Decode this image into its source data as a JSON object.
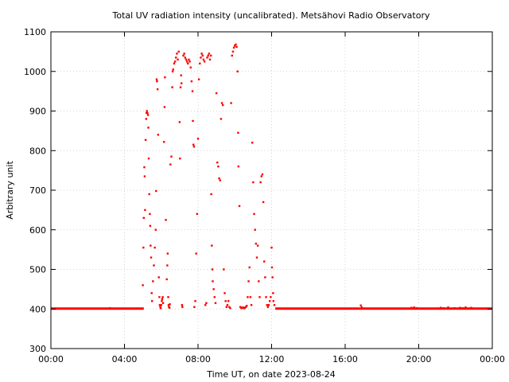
{
  "chart_data": {
    "type": "scatter",
    "title": "Total UV radiation intensity (uncalibrated). Metsähovi Radio Observatory",
    "xlabel": "Time UT, on date 2023-08-24",
    "ylabel": "Arbitrary unit",
    "xlim": [
      0,
      24
    ],
    "ylim": [
      300,
      1100
    ],
    "x_ticks": [
      {
        "value": 0,
        "label": "00:00"
      },
      {
        "value": 4,
        "label": "04:00"
      },
      {
        "value": 8,
        "label": "08:00"
      },
      {
        "value": 12,
        "label": "12:00"
      },
      {
        "value": 16,
        "label": "16:00"
      },
      {
        "value": 20,
        "label": "20:00"
      },
      {
        "value": 24,
        "label": "00:00"
      }
    ],
    "y_ticks": [
      {
        "value": 300,
        "label": "300"
      },
      {
        "value": 400,
        "label": "400"
      },
      {
        "value": 500,
        "label": "500"
      },
      {
        "value": 600,
        "label": "600"
      },
      {
        "value": 700,
        "label": "700"
      },
      {
        "value": 800,
        "label": "800"
      },
      {
        "value": 900,
        "label": "900"
      },
      {
        "value": 1000,
        "label": "1000"
      },
      {
        "value": 1100,
        "label": "1100"
      }
    ],
    "grid": true,
    "series": [
      {
        "color": "#ff0000",
        "baseline": [
          {
            "x": [
              0.0,
              5.05
            ],
            "y": 401
          },
          {
            "x": [
              12.2,
              24.0
            ],
            "y": 401
          }
        ],
        "points": [
          [
            3.2,
            402
          ],
          [
            16.85,
            409
          ],
          [
            16.9,
            404
          ],
          [
            19.6,
            403
          ],
          [
            19.75,
            404
          ],
          [
            19.9,
            402
          ],
          [
            21.2,
            403
          ],
          [
            21.35,
            402
          ],
          [
            21.6,
            404
          ],
          [
            21.95,
            402
          ],
          [
            22.1,
            401
          ],
          [
            22.25,
            403
          ],
          [
            22.4,
            402
          ],
          [
            22.55,
            404
          ],
          [
            22.7,
            401
          ],
          [
            22.85,
            403
          ],
          [
            5.0,
            460
          ],
          [
            5.03,
            555
          ],
          [
            5.05,
            630
          ],
          [
            5.08,
            758
          ],
          [
            5.1,
            735
          ],
          [
            5.12,
            650
          ],
          [
            5.15,
            827
          ],
          [
            5.18,
            880
          ],
          [
            5.2,
            895
          ],
          [
            5.22,
            900
          ],
          [
            5.25,
            895
          ],
          [
            5.28,
            890
          ],
          [
            5.3,
            858
          ],
          [
            5.32,
            780
          ],
          [
            5.35,
            690
          ],
          [
            5.38,
            640
          ],
          [
            5.4,
            610
          ],
          [
            5.42,
            560
          ],
          [
            5.45,
            530
          ],
          [
            5.48,
            440
          ],
          [
            5.5,
            420
          ],
          [
            5.55,
            470
          ],
          [
            5.6,
            510
          ],
          [
            5.65,
            555
          ],
          [
            5.7,
            600
          ],
          [
            5.72,
            698
          ],
          [
            5.75,
            980
          ],
          [
            5.77,
            975
          ],
          [
            5.8,
            955
          ],
          [
            5.83,
            840
          ],
          [
            5.87,
            480
          ],
          [
            5.9,
            430
          ],
          [
            5.92,
            410
          ],
          [
            5.95,
            405
          ],
          [
            5.97,
            402
          ],
          [
            6.0,
            410
          ],
          [
            6.03,
            420
          ],
          [
            6.05,
            425
          ],
          [
            6.08,
            430
          ],
          [
            6.1,
            415
          ],
          [
            6.15,
            822
          ],
          [
            6.18,
            910
          ],
          [
            6.2,
            985
          ],
          [
            6.25,
            625
          ],
          [
            6.3,
            475
          ],
          [
            6.33,
            510
          ],
          [
            6.35,
            540
          ],
          [
            6.38,
            430
          ],
          [
            6.4,
            410
          ],
          [
            6.42,
            405
          ],
          [
            6.45,
            403
          ],
          [
            6.47,
            412
          ],
          [
            6.5,
            765
          ],
          [
            6.55,
            785
          ],
          [
            6.6,
            960
          ],
          [
            6.62,
            1000
          ],
          [
            6.65,
            1005
          ],
          [
            6.7,
            1020
          ],
          [
            6.75,
            1025
          ],
          [
            6.8,
            1035
          ],
          [
            6.85,
            1045
          ],
          [
            6.9,
            1030
          ],
          [
            6.95,
            1050
          ],
          [
            7.0,
            872
          ],
          [
            7.02,
            780
          ],
          [
            7.05,
            960
          ],
          [
            7.08,
            990
          ],
          [
            7.1,
            970
          ],
          [
            7.13,
            410
          ],
          [
            7.15,
            405
          ],
          [
            7.2,
            1040
          ],
          [
            7.25,
            1045
          ],
          [
            7.3,
            1035
          ],
          [
            7.35,
            1030
          ],
          [
            7.4,
            1025
          ],
          [
            7.45,
            1020
          ],
          [
            7.5,
            1030
          ],
          [
            7.55,
            1025
          ],
          [
            7.6,
            1010
          ],
          [
            7.65,
            975
          ],
          [
            7.7,
            950
          ],
          [
            7.72,
            875
          ],
          [
            7.75,
            815
          ],
          [
            7.78,
            810
          ],
          [
            7.8,
            405
          ],
          [
            7.85,
            420
          ],
          [
            7.9,
            540
          ],
          [
            7.95,
            640
          ],
          [
            8.0,
            830
          ],
          [
            8.05,
            980
          ],
          [
            8.1,
            1020
          ],
          [
            8.15,
            1035
          ],
          [
            8.2,
            1045
          ],
          [
            8.25,
            1040
          ],
          [
            8.3,
            1030
          ],
          [
            8.35,
            1025
          ],
          [
            8.4,
            410
          ],
          [
            8.45,
            415
          ],
          [
            8.5,
            1035
          ],
          [
            8.55,
            1040
          ],
          [
            8.6,
            1045
          ],
          [
            8.65,
            1030
          ],
          [
            8.7,
            1040
          ],
          [
            8.72,
            690
          ],
          [
            8.75,
            560
          ],
          [
            8.78,
            500
          ],
          [
            8.8,
            470
          ],
          [
            8.85,
            450
          ],
          [
            8.9,
            430
          ],
          [
            8.95,
            415
          ],
          [
            9.0,
            945
          ],
          [
            9.05,
            770
          ],
          [
            9.1,
            760
          ],
          [
            9.15,
            730
          ],
          [
            9.2,
            725
          ],
          [
            9.25,
            880
          ],
          [
            9.3,
            920
          ],
          [
            9.35,
            915
          ],
          [
            9.4,
            500
          ],
          [
            9.45,
            440
          ],
          [
            9.5,
            420
          ],
          [
            9.55,
            405
          ],
          [
            9.6,
            410
          ],
          [
            9.65,
            420
          ],
          [
            9.7,
            405
          ],
          [
            9.75,
            402
          ],
          [
            9.8,
            920
          ],
          [
            9.85,
            1040
          ],
          [
            9.9,
            1050
          ],
          [
            9.95,
            1060
          ],
          [
            10.0,
            1065
          ],
          [
            10.05,
            1068
          ],
          [
            10.1,
            1062
          ],
          [
            10.15,
            1000
          ],
          [
            10.18,
            845
          ],
          [
            10.2,
            760
          ],
          [
            10.25,
            660
          ],
          [
            10.3,
            405
          ],
          [
            10.35,
            402
          ],
          [
            10.4,
            403
          ],
          [
            10.45,
            404
          ],
          [
            10.5,
            402
          ],
          [
            10.55,
            403
          ],
          [
            10.6,
            405
          ],
          [
            10.65,
            408
          ],
          [
            10.7,
            430
          ],
          [
            10.75,
            470
          ],
          [
            10.8,
            505
          ],
          [
            10.85,
            430
          ],
          [
            10.9,
            410
          ],
          [
            10.95,
            820
          ],
          [
            11.0,
            720
          ],
          [
            11.05,
            640
          ],
          [
            11.1,
            600
          ],
          [
            11.15,
            565
          ],
          [
            11.2,
            530
          ],
          [
            11.25,
            560
          ],
          [
            11.3,
            470
          ],
          [
            11.35,
            430
          ],
          [
            11.4,
            720
          ],
          [
            11.45,
            735
          ],
          [
            11.5,
            740
          ],
          [
            11.55,
            670
          ],
          [
            11.6,
            520
          ],
          [
            11.65,
            480
          ],
          [
            11.7,
            430
          ],
          [
            11.75,
            410
          ],
          [
            11.8,
            405
          ],
          [
            11.85,
            410
          ],
          [
            11.9,
            420
          ],
          [
            11.95,
            430
          ],
          [
            12.0,
            555
          ],
          [
            12.02,
            505
          ],
          [
            12.05,
            480
          ],
          [
            12.08,
            440
          ],
          [
            12.1,
            420
          ],
          [
            12.15,
            410
          ]
        ]
      }
    ]
  }
}
